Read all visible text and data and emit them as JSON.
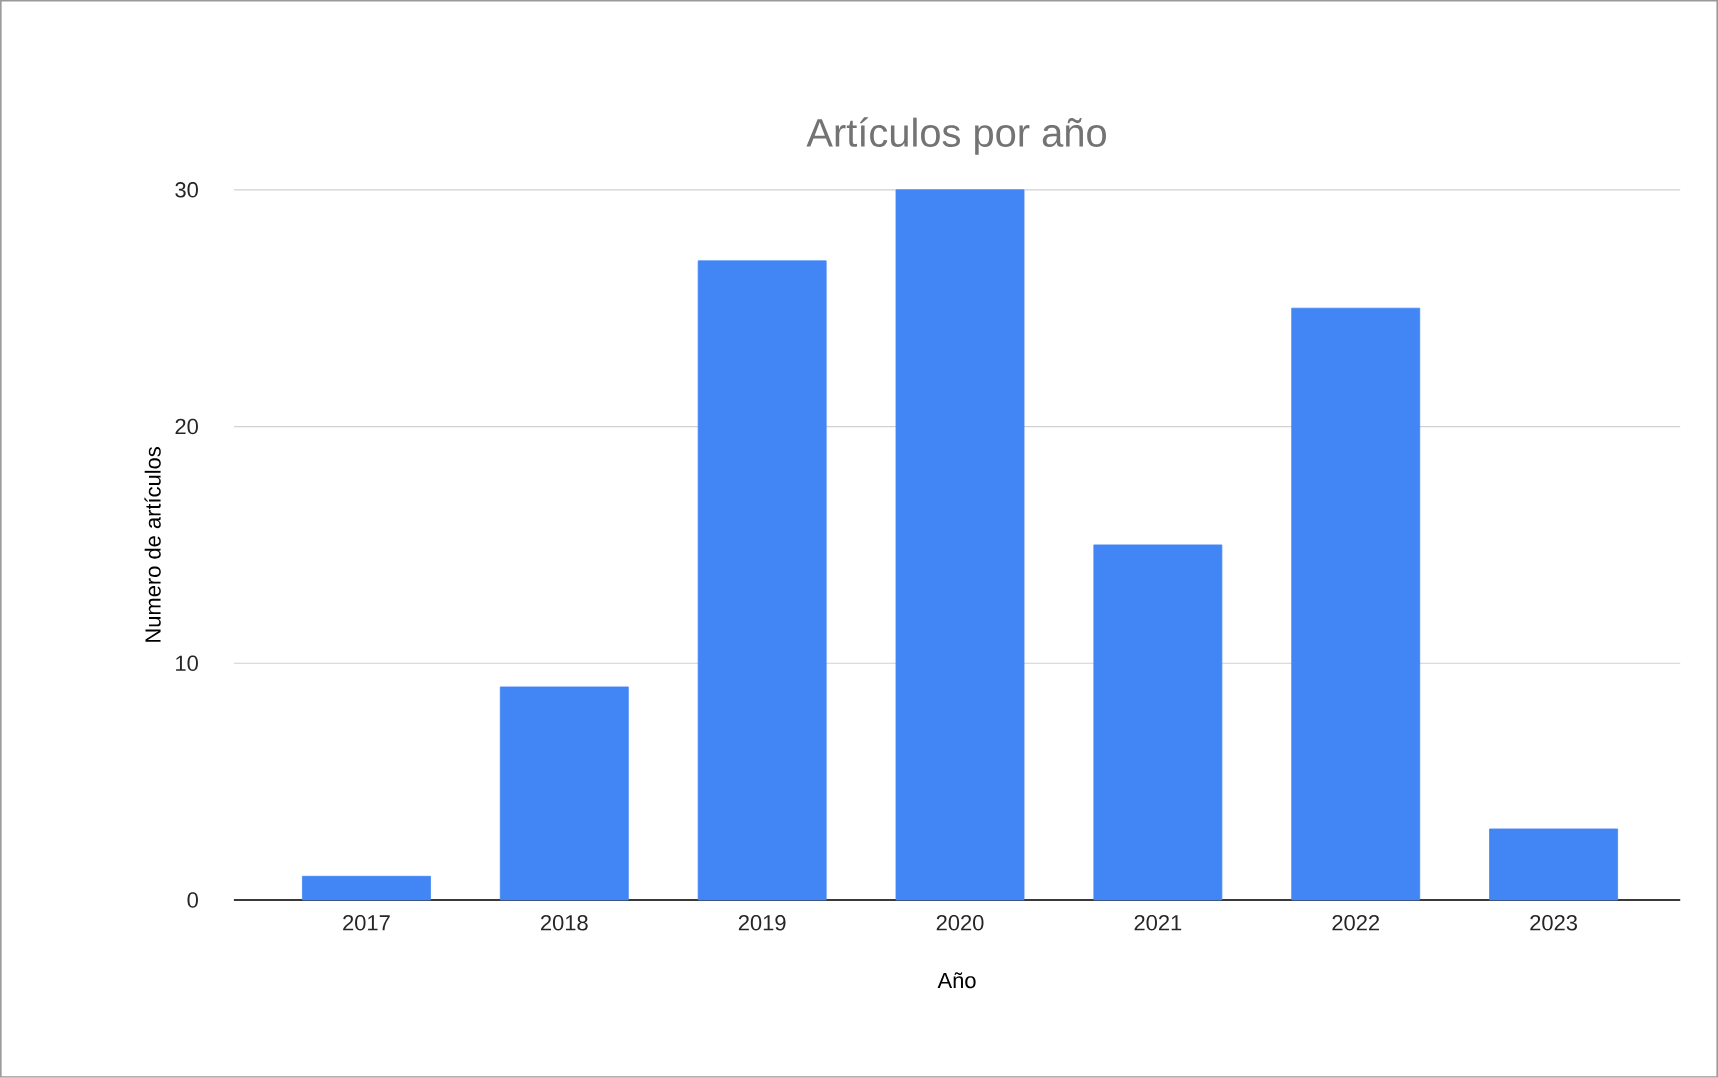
{
  "chart_data": {
    "type": "bar",
    "title": "Artículos por año",
    "xlabel": "Año",
    "ylabel": "Numero de artículos",
    "categories": [
      "2017",
      "2018",
      "2019",
      "2020",
      "2021",
      "2022",
      "2023"
    ],
    "values": [
      1,
      9,
      27,
      30,
      15,
      25,
      3
    ],
    "color": "#4285f4",
    "ylim": [
      0,
      30
    ],
    "yticks": [
      0,
      10,
      20,
      30
    ],
    "grid": "y"
  }
}
